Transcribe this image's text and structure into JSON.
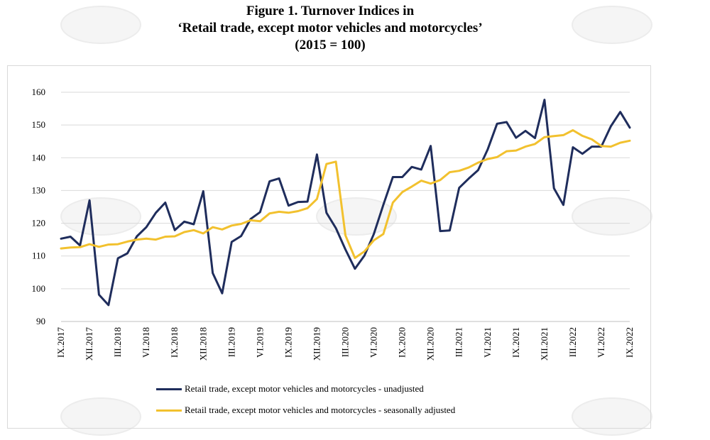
{
  "title": {
    "line1": "Figure 1. Turnover Indices in",
    "line2": "‘Retail trade, except motor vehicles and motorcycles’",
    "line3": "(2015 = 100)"
  },
  "chart_data": {
    "type": "line",
    "title": "Figure 1. Turnover Indices in ‘Retail trade, except motor vehicles and motorcycles’ (2015 = 100)",
    "xlabel": "",
    "ylabel": "",
    "ylim": [
      90,
      160
    ],
    "yticks": [
      90,
      100,
      110,
      120,
      130,
      140,
      150,
      160
    ],
    "grid": "horizontal",
    "legend_position": "bottom",
    "x_tick_labels": [
      "IX.2017",
      "XII.2017",
      "III.2018",
      "VI.2018",
      "IX.2018",
      "XII.2018",
      "III.2019",
      "VI.2019",
      "IX.2019",
      "XII.2019",
      "III.2020",
      "VI.2020",
      "IX.2020",
      "XII.2020",
      "III.2021",
      "VI.2021",
      "IX.2021",
      "XII.2021",
      "III.2022",
      "VI.2022",
      "IX.2022"
    ],
    "x": [
      "IX.2017",
      "X.2017",
      "XI.2017",
      "XII.2017",
      "I.2018",
      "II.2018",
      "III.2018",
      "IV.2018",
      "V.2018",
      "VI.2018",
      "VII.2018",
      "VIII.2018",
      "IX.2018",
      "X.2018",
      "XI.2018",
      "XII.2018",
      "I.2019",
      "II.2019",
      "III.2019",
      "IV.2019",
      "V.2019",
      "VI.2019",
      "VII.2019",
      "VIII.2019",
      "IX.2019",
      "X.2019",
      "XI.2019",
      "XII.2019",
      "I.2020",
      "II.2020",
      "III.2020",
      "IV.2020",
      "V.2020",
      "VI.2020",
      "VII.2020",
      "VIII.2020",
      "IX.2020",
      "X.2020",
      "XI.2020",
      "XII.2020",
      "I.2021",
      "II.2021",
      "III.2021",
      "IV.2021",
      "V.2021",
      "VI.2021",
      "VII.2021",
      "VIII.2021",
      "IX.2021",
      "X.2021",
      "XI.2021",
      "XII.2021",
      "I.2022",
      "II.2022",
      "III.2022",
      "IV.2022",
      "V.2022",
      "VI.2022",
      "VII.2022",
      "VIII.2022",
      "IX.2022"
    ],
    "series": [
      {
        "name": "Retail trade, except motor vehicles and motorcycles - unadjusted",
        "color": "#1f2d5c",
        "values": [
          115.3,
          115.9,
          113.2,
          127.0,
          98.2,
          95.0,
          109.3,
          110.8,
          116.0,
          118.8,
          123.2,
          126.3,
          117.9,
          120.5,
          119.7,
          129.8,
          104.8,
          98.6,
          114.3,
          116.1,
          121.3,
          123.4,
          132.8,
          133.7,
          125.4,
          126.5,
          126.6,
          141.0,
          123.2,
          118.5,
          112.0,
          106.1,
          110.1,
          116.7,
          125.6,
          134.1,
          134.1,
          137.2,
          136.4,
          143.6,
          117.6,
          117.8,
          130.8,
          133.6,
          136.2,
          142.5,
          150.4,
          150.9,
          146.1,
          148.2,
          146.0,
          157.7,
          130.7,
          125.6,
          143.2,
          141.2,
          143.4,
          143.4,
          149.6,
          154.0,
          149.2
        ]
      },
      {
        "name": "Retail trade, except motor vehicles and motorcycles - seasonally adjusted",
        "color": "#f2c12e",
        "values": [
          112.3,
          112.6,
          112.7,
          113.6,
          112.8,
          113.5,
          113.6,
          114.4,
          115.0,
          115.3,
          115.0,
          115.9,
          116.0,
          117.3,
          117.9,
          116.9,
          118.8,
          118.1,
          119.3,
          119.8,
          120.9,
          120.6,
          123.0,
          123.5,
          123.2,
          123.7,
          124.6,
          127.4,
          138.1,
          138.8,
          116.3,
          109.4,
          111.4,
          114.8,
          116.7,
          126.3,
          129.5,
          131.2,
          133.0,
          132.1,
          133.2,
          135.6,
          136.0,
          137.0,
          138.5,
          139.6,
          140.2,
          142.0,
          142.2,
          143.4,
          144.2,
          146.3,
          146.6,
          146.9,
          148.4,
          146.7,
          145.6,
          143.6,
          143.4,
          144.6,
          145.2
        ]
      }
    ]
  }
}
